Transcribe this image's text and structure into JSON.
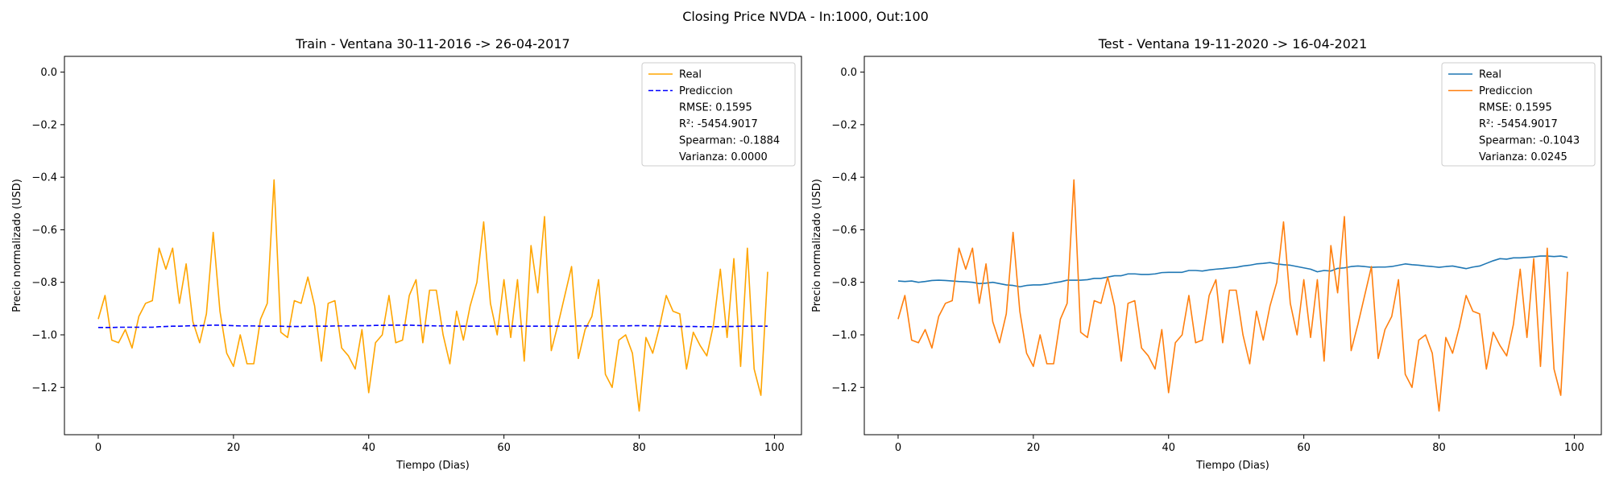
{
  "suptitle": "Closing Price NVDA - In:1000, Out:100",
  "chart_data": [
    {
      "type": "line",
      "title": "Train - Ventana 30-11-2016 -> 26-04-2017",
      "xlabel": "Tiempo (Dias)",
      "ylabel": "Precio normalizado (USD)",
      "xlim": [
        -5,
        104
      ],
      "ylim": [
        -1.38,
        0.06
      ],
      "xticks": [
        0,
        20,
        40,
        60,
        80,
        100
      ],
      "yticks": [
        0.0,
        -0.2,
        -0.4,
        -0.6,
        -0.8,
        -1.0,
        -1.2
      ],
      "xtick_labels": [
        "0",
        "20",
        "40",
        "60",
        "80",
        "100"
      ],
      "ytick_labels": [
        "0.0",
        "−0.2",
        "−0.4",
        "−0.6",
        "−0.8",
        "−1.0",
        "−1.2"
      ],
      "legend_position": "upper right",
      "series": [
        {
          "name": "Real",
          "color": "#FFA500",
          "style": "solid",
          "values": [
            -0.94,
            -0.85,
            -1.02,
            -1.03,
            -0.98,
            -1.05,
            -0.93,
            -0.88,
            -0.87,
            -0.67,
            -0.75,
            -0.67,
            -0.88,
            -0.73,
            -0.95,
            -1.03,
            -0.92,
            -0.61,
            -0.91,
            -1.07,
            -1.12,
            -1.0,
            -1.11,
            -1.11,
            -0.94,
            -0.88,
            -0.41,
            -0.99,
            -1.01,
            -0.87,
            -0.88,
            -0.78,
            -0.89,
            -1.1,
            -0.88,
            -0.87,
            -1.05,
            -1.08,
            -1.13,
            -0.98,
            -1.22,
            -1.03,
            -1.0,
            -0.85,
            -1.03,
            -1.02,
            -0.85,
            -0.79,
            -1.03,
            -0.83,
            -0.83,
            -1.0,
            -1.11,
            -0.91,
            -1.02,
            -0.89,
            -0.8,
            -0.57,
            -0.88,
            -1.0,
            -0.79,
            -1.01,
            -0.79,
            -1.1,
            -0.66,
            -0.84,
            -0.55,
            -1.06,
            -0.96,
            -0.85,
            -0.74,
            -1.09,
            -0.98,
            -0.93,
            -0.79,
            -1.15,
            -1.2,
            -1.02,
            -1.0,
            -1.07,
            -1.29,
            -1.01,
            -1.07,
            -0.97,
            -0.85,
            -0.91,
            -0.92,
            -1.13,
            -0.99,
            -1.04,
            -1.08,
            -0.96,
            -0.75,
            -1.01,
            -0.71,
            -1.12,
            -0.67,
            -1.13,
            -1.23,
            -0.76
          ]
        },
        {
          "name": "Prediccion",
          "color": "#0000FF",
          "style": "dashed",
          "values": [
            -0.972,
            -0.972,
            -0.972,
            -0.971,
            -0.971,
            -0.971,
            -0.971,
            -0.971,
            -0.971,
            -0.969,
            -0.968,
            -0.967,
            -0.967,
            -0.966,
            -0.965,
            -0.965,
            -0.964,
            -0.963,
            -0.963,
            -0.964,
            -0.965,
            -0.966,
            -0.966,
            -0.966,
            -0.967,
            -0.967,
            -0.967,
            -0.967,
            -0.968,
            -0.968,
            -0.968,
            -0.967,
            -0.967,
            -0.967,
            -0.967,
            -0.966,
            -0.966,
            -0.966,
            -0.965,
            -0.965,
            -0.965,
            -0.964,
            -0.964,
            -0.963,
            -0.963,
            -0.963,
            -0.963,
            -0.964,
            -0.965,
            -0.965,
            -0.966,
            -0.966,
            -0.966,
            -0.967,
            -0.967,
            -0.967,
            -0.967,
            -0.967,
            -0.967,
            -0.967,
            -0.967,
            -0.967,
            -0.967,
            -0.967,
            -0.967,
            -0.967,
            -0.967,
            -0.967,
            -0.967,
            -0.967,
            -0.967,
            -0.966,
            -0.966,
            -0.966,
            -0.966,
            -0.966,
            -0.966,
            -0.966,
            -0.966,
            -0.965,
            -0.965,
            -0.965,
            -0.966,
            -0.966,
            -0.967,
            -0.967,
            -0.968,
            -0.968,
            -0.968,
            -0.969,
            -0.969,
            -0.969,
            -0.969,
            -0.968,
            -0.968,
            -0.967,
            -0.967,
            -0.967,
            -0.967,
            -0.967
          ]
        }
      ],
      "metrics": [
        "RMSE: 0.1595",
        "R²: -5454.9017",
        "Spearman: -0.1884",
        "Varianza: 0.0000"
      ]
    },
    {
      "type": "line",
      "title": "Test - Ventana 19-11-2020 -> 16-04-2021",
      "xlabel": "Tiempo (Dias)",
      "ylabel": "Precio normalizado (USD)",
      "xlim": [
        -5,
        104
      ],
      "ylim": [
        -1.38,
        0.06
      ],
      "xticks": [
        0,
        20,
        40,
        60,
        80,
        100
      ],
      "yticks": [
        0.0,
        -0.2,
        -0.4,
        -0.6,
        -0.8,
        -1.0,
        -1.2
      ],
      "xtick_labels": [
        "0",
        "20",
        "40",
        "60",
        "80",
        "100"
      ],
      "ytick_labels": [
        "0.0",
        "−0.2",
        "−0.4",
        "−0.6",
        "−0.8",
        "−1.0",
        "−1.2"
      ],
      "legend_position": "upper right",
      "series": [
        {
          "name": "Real",
          "color": "#1f77b4",
          "style": "solid",
          "values": [
            -0.795,
            -0.797,
            -0.795,
            -0.8,
            -0.797,
            -0.793,
            -0.792,
            -0.793,
            -0.795,
            -0.797,
            -0.798,
            -0.8,
            -0.805,
            -0.803,
            -0.8,
            -0.805,
            -0.81,
            -0.812,
            -0.817,
            -0.812,
            -0.81,
            -0.81,
            -0.807,
            -0.802,
            -0.798,
            -0.792,
            -0.792,
            -0.792,
            -0.79,
            -0.785,
            -0.785,
            -0.78,
            -0.775,
            -0.775,
            -0.768,
            -0.768,
            -0.77,
            -0.77,
            -0.768,
            -0.763,
            -0.762,
            -0.762,
            -0.762,
            -0.755,
            -0.755,
            -0.757,
            -0.753,
            -0.75,
            -0.748,
            -0.745,
            -0.743,
            -0.738,
            -0.735,
            -0.73,
            -0.728,
            -0.725,
            -0.73,
            -0.733,
            -0.735,
            -0.74,
            -0.745,
            -0.75,
            -0.76,
            -0.755,
            -0.757,
            -0.747,
            -0.745,
            -0.74,
            -0.738,
            -0.74,
            -0.743,
            -0.742,
            -0.742,
            -0.74,
            -0.735,
            -0.73,
            -0.733,
            -0.735,
            -0.738,
            -0.74,
            -0.743,
            -0.74,
            -0.738,
            -0.743,
            -0.748,
            -0.742,
            -0.738,
            -0.728,
            -0.718,
            -0.71,
            -0.712,
            -0.707,
            -0.707,
            -0.705,
            -0.703,
            -0.7,
            -0.7,
            -0.702,
            -0.7,
            -0.705
          ]
        },
        {
          "name": "Prediccion",
          "color": "#ff7f0e",
          "style": "solid",
          "values": [
            -0.94,
            -0.85,
            -1.02,
            -1.03,
            -0.98,
            -1.05,
            -0.93,
            -0.88,
            -0.87,
            -0.67,
            -0.75,
            -0.67,
            -0.88,
            -0.73,
            -0.95,
            -1.03,
            -0.92,
            -0.61,
            -0.91,
            -1.07,
            -1.12,
            -1.0,
            -1.11,
            -1.11,
            -0.94,
            -0.88,
            -0.41,
            -0.99,
            -1.01,
            -0.87,
            -0.88,
            -0.78,
            -0.89,
            -1.1,
            -0.88,
            -0.87,
            -1.05,
            -1.08,
            -1.13,
            -0.98,
            -1.22,
            -1.03,
            -1.0,
            -0.85,
            -1.03,
            -1.02,
            -0.85,
            -0.79,
            -1.03,
            -0.83,
            -0.83,
            -1.0,
            -1.11,
            -0.91,
            -1.02,
            -0.89,
            -0.8,
            -0.57,
            -0.88,
            -1.0,
            -0.79,
            -1.01,
            -0.79,
            -1.1,
            -0.66,
            -0.84,
            -0.55,
            -1.06,
            -0.96,
            -0.85,
            -0.74,
            -1.09,
            -0.98,
            -0.93,
            -0.79,
            -1.15,
            -1.2,
            -1.02,
            -1.0,
            -1.07,
            -1.29,
            -1.01,
            -1.07,
            -0.97,
            -0.85,
            -0.91,
            -0.92,
            -1.13,
            -0.99,
            -1.04,
            -1.08,
            -0.96,
            -0.75,
            -1.01,
            -0.71,
            -1.12,
            -0.67,
            -1.13,
            -1.23,
            -0.76
          ]
        }
      ],
      "metrics": [
        "RMSE: 0.1595",
        "R²: -5454.9017",
        "Spearman: -0.1043",
        "Varianza: 0.0245"
      ]
    }
  ]
}
